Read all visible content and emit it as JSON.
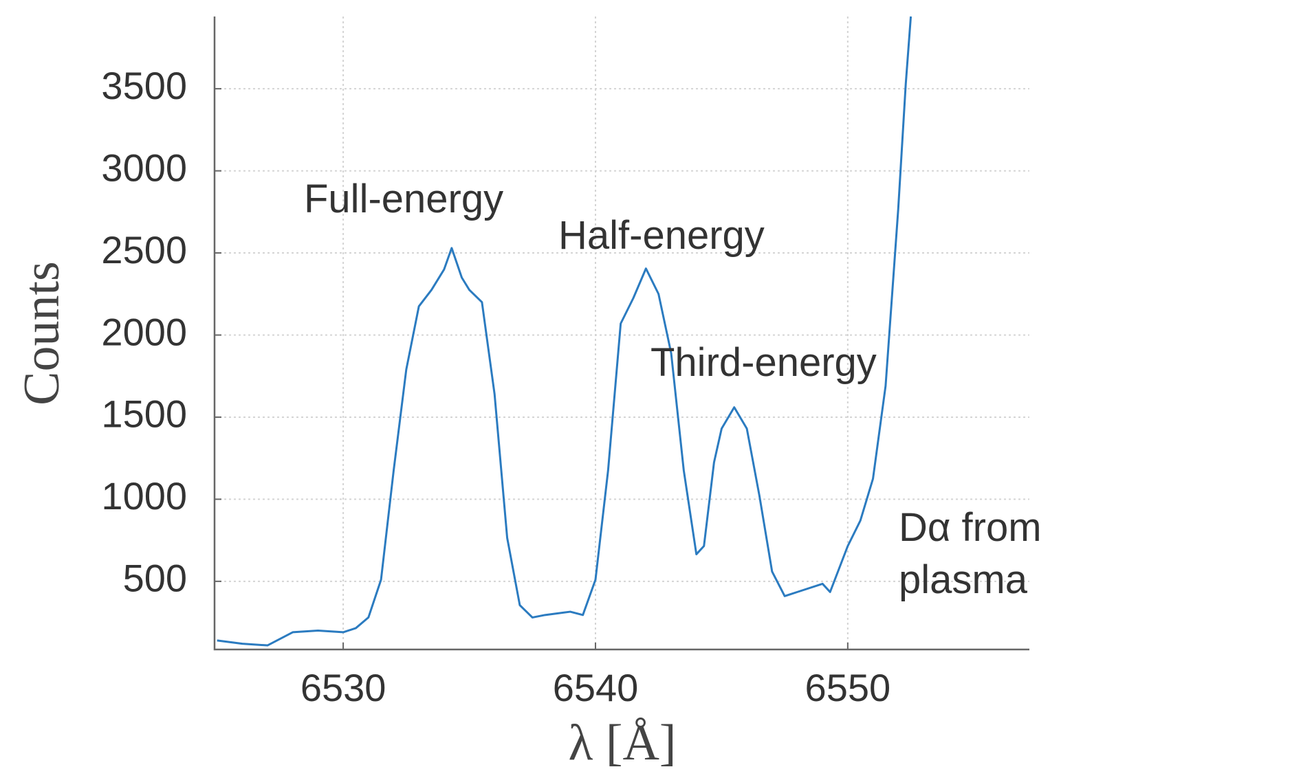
{
  "chart_data": {
    "type": "line",
    "xlabel": "λ [Å]",
    "ylabel": "Counts",
    "xlim": [
      6524.9,
      6557.2
    ],
    "ylim": [
      85,
      3940
    ],
    "xticks": [
      6530,
      6540,
      6550
    ],
    "yticks": [
      500,
      1000,
      1500,
      2000,
      2500,
      3000,
      3500
    ],
    "grid": true,
    "annotations": [
      "Full-energy",
      "Half-energy",
      "Third-energy",
      "Dα from plasma"
    ],
    "x": [
      6525,
      6526,
      6527,
      6528,
      6529,
      6530,
      6530.5,
      6531,
      6531.5,
      6532,
      6532.5,
      6533,
      6533.5,
      6534,
      6534.3,
      6534.7,
      6535,
      6535.5,
      6536,
      6536.5,
      6537,
      6537.5,
      6538,
      6539,
      6539.5,
      6540,
      6540.5,
      6541,
      6541.5,
      6542,
      6542.5,
      6543,
      6543.5,
      6544,
      6544.3,
      6544.7,
      6545,
      6545.5,
      6546,
      6546.5,
      6547,
      6547.5,
      6548,
      6549,
      6549.3,
      6550,
      6550.5,
      6551,
      6551.5,
      6552,
      6552.3,
      6552.5
    ],
    "series": [
      {
        "color": "#2b7bc0",
        "values": [
          140,
          120,
          110,
          190,
          200,
          190,
          215,
          280,
          510,
          1175,
          1790,
          2175,
          2275,
          2400,
          2530,
          2350,
          2275,
          2200,
          1640,
          765,
          355,
          280,
          295,
          315,
          295,
          510,
          1175,
          2070,
          2225,
          2405,
          2250,
          1890,
          1175,
          665,
          715,
          1225,
          1430,
          1560,
          1430,
          1020,
          560,
          410,
          435,
          485,
          435,
          715,
          870,
          1125,
          1690,
          2765,
          3530,
          3940
        ]
      }
    ]
  }
}
